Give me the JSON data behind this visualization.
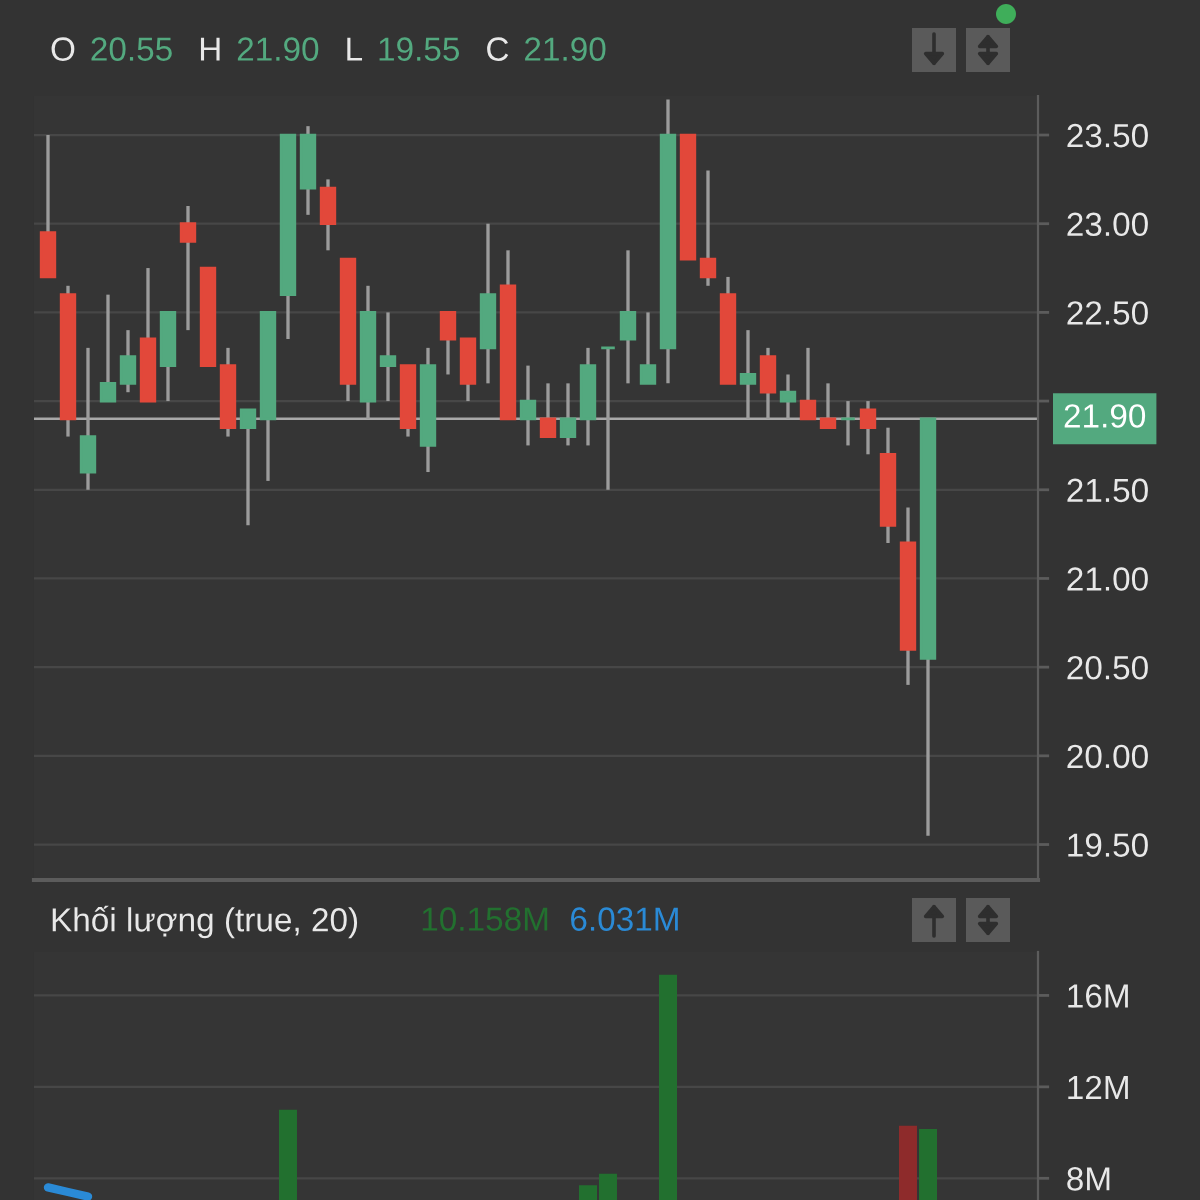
{
  "chart_data": [
    {
      "type": "candlestick",
      "categories": [
        null,
        null,
        null,
        null,
        null,
        null,
        null,
        null,
        null,
        null,
        null,
        null,
        null,
        null,
        null,
        null,
        null,
        null,
        null,
        null,
        null,
        null,
        null,
        null,
        null,
        null,
        null,
        null,
        null,
        null,
        null,
        null,
        null,
        null,
        null,
        null,
        null,
        null,
        null,
        null,
        null,
        null,
        null,
        null,
        null
      ],
      "ohlc": [
        [
          22.95,
          23.5,
          22.7,
          22.7
        ],
        [
          22.6,
          22.65,
          21.8,
          21.9
        ],
        [
          21.6,
          22.3,
          21.5,
          21.8
        ],
        [
          22.0,
          22.6,
          22.0,
          22.1
        ],
        [
          22.1,
          22.4,
          22.05,
          22.25
        ],
        [
          22.35,
          22.75,
          22.0,
          22.0
        ],
        [
          22.2,
          22.5,
          22.0,
          22.5
        ],
        [
          23.0,
          23.1,
          22.4,
          22.9
        ],
        [
          22.75,
          22.75,
          22.2,
          22.2
        ],
        [
          22.2,
          22.3,
          21.8,
          21.85
        ],
        [
          21.85,
          21.95,
          21.3,
          21.95
        ],
        [
          21.9,
          22.5,
          21.55,
          22.5
        ],
        [
          22.6,
          23.5,
          22.35,
          23.5
        ],
        [
          23.2,
          23.55,
          23.05,
          23.5
        ],
        [
          23.2,
          23.25,
          22.85,
          23.0
        ],
        [
          22.8,
          22.8,
          22.0,
          22.1
        ],
        [
          22.0,
          22.65,
          21.9,
          22.5
        ],
        [
          22.2,
          22.5,
          22.0,
          22.25
        ],
        [
          22.2,
          22.2,
          21.8,
          21.85
        ],
        [
          21.75,
          22.3,
          21.6,
          22.2
        ],
        [
          22.5,
          22.5,
          22.15,
          22.35
        ],
        [
          22.35,
          22.35,
          22.0,
          22.1
        ],
        [
          22.3,
          23.0,
          22.1,
          22.6
        ],
        [
          22.65,
          22.85,
          21.9,
          21.9
        ],
        [
          21.9,
          22.2,
          21.75,
          22.0
        ],
        [
          21.9,
          22.1,
          21.8,
          21.8
        ],
        [
          21.8,
          22.1,
          21.75,
          21.9
        ],
        [
          21.9,
          22.3,
          21.75,
          22.2
        ],
        [
          22.3,
          22.3,
          21.5,
          22.3
        ],
        [
          22.35,
          22.85,
          22.1,
          22.5
        ],
        [
          22.1,
          22.5,
          22.1,
          22.2
        ],
        [
          22.3,
          23.7,
          22.1,
          23.5
        ],
        [
          23.5,
          23.5,
          22.8,
          22.8
        ],
        [
          22.8,
          23.3,
          22.65,
          22.7
        ],
        [
          22.6,
          22.7,
          22.1,
          22.1
        ],
        [
          22.1,
          22.4,
          21.9,
          22.15
        ],
        [
          22.25,
          22.3,
          21.9,
          22.05
        ],
        [
          22.0,
          22.15,
          21.9,
          22.05
        ],
        [
          22.0,
          22.3,
          21.9,
          21.9
        ],
        [
          21.9,
          22.1,
          21.85,
          21.85
        ],
        [
          21.9,
          22.0,
          21.75,
          21.9
        ],
        [
          21.95,
          22.0,
          21.7,
          21.85
        ],
        [
          21.7,
          21.85,
          21.2,
          21.3
        ],
        [
          21.2,
          21.4,
          20.4,
          20.6
        ],
        [
          20.55,
          21.9,
          19.55,
          21.9
        ]
      ],
      "colors": [
        "#e2483a",
        "#e2483a",
        "#53a97f",
        "#53a97f",
        "#53a97f",
        "#e2483a",
        "#53a97f",
        "#e2483a",
        "#e2483a",
        "#e2483a",
        "#53a97f",
        "#53a97f",
        "#53a97f",
        "#53a97f",
        "#e2483a",
        "#e2483a",
        "#53a97f",
        "#53a97f",
        "#e2483a",
        "#53a97f",
        "#e2483a",
        "#e2483a",
        "#53a97f",
        "#e2483a",
        "#53a97f",
        "#e2483a",
        "#53a97f",
        "#53a97f",
        "#53a97f",
        "#53a97f",
        "#53a97f",
        "#53a97f",
        "#e2483a",
        "#e2483a",
        "#e2483a",
        "#53a97f",
        "#e2483a",
        "#53a97f",
        "#e2483a",
        "#e2483a",
        "#53a97f",
        "#e2483a",
        "#e2483a",
        "#e2483a",
        "#53a97f"
      ],
      "ylim": [
        19.3,
        23.72
      ],
      "yticks": [
        {
          "value": 19.5,
          "label": "19.50"
        },
        {
          "value": 20,
          "label": "20.00"
        },
        {
          "value": 20.5,
          "label": "20.50"
        },
        {
          "value": 21,
          "label": "21.00"
        },
        {
          "value": 21.5,
          "label": "21.50"
        },
        {
          "value": 22,
          "label": null
        },
        {
          "value": 22.5,
          "label": "22.50"
        },
        {
          "value": 23,
          "label": "23.00"
        },
        {
          "value": 23.5,
          "label": "23.50"
        }
      ],
      "ref_lines": [
        {
          "axis": "y",
          "value": 21.9,
          "label": "21.90",
          "color": "#a8a8a8"
        }
      ],
      "annotations": [
        "O",
        "20.55",
        "H",
        "21.90",
        "L",
        "19.55",
        "C",
        "21.90"
      ],
      "grid": "y",
      "tick_labels": "y"
    },
    {
      "type": "bar",
      "title": "Khối lượng (true, 20)",
      "categories": [
        null,
        null,
        null,
        null,
        null,
        null,
        null,
        null,
        null,
        null,
        null,
        null,
        null,
        null,
        null,
        null,
        null,
        null,
        null,
        null,
        null,
        null,
        null,
        null,
        null,
        null,
        null,
        null,
        null,
        null,
        null,
        null,
        null,
        null,
        null,
        null,
        null,
        null,
        null,
        null,
        null,
        null,
        null,
        null,
        null
      ],
      "series": [
        {
          "type": "bar",
          "values": [
            null,
            null,
            null,
            null,
            null,
            null,
            null,
            null,
            null,
            null,
            null,
            null,
            11.0,
            null,
            null,
            null,
            null,
            null,
            null,
            null,
            null,
            null,
            null,
            null,
            null,
            null,
            null,
            7.7,
            8.2,
            null,
            null,
            16.9,
            null,
            null,
            null,
            null,
            null,
            null,
            null,
            null,
            null,
            null,
            null,
            10.3,
            10.158
          ],
          "colors": [
            "#8e2b2b",
            "#8e2b2b",
            "#22702f",
            "#22702f",
            "#22702f",
            "#8e2b2b",
            "#22702f",
            "#8e2b2b",
            "#8e2b2b",
            "#8e2b2b",
            "#22702f",
            "#22702f",
            "#22702f",
            "#22702f",
            "#8e2b2b",
            "#8e2b2b",
            "#22702f",
            "#22702f",
            "#8e2b2b",
            "#22702f",
            "#8e2b2b",
            "#8e2b2b",
            "#22702f",
            "#8e2b2b",
            "#22702f",
            "#8e2b2b",
            "#22702f",
            "#22702f",
            "#22702f",
            "#22702f",
            "#22702f",
            "#22702f",
            "#8e2b2b",
            "#8e2b2b",
            "#8e2b2b",
            "#22702f",
            "#8e2b2b",
            "#22702f",
            "#8e2b2b",
            "#8e2b2b",
            "#22702f",
            "#8e2b2b",
            "#8e2b2b",
            "#8e2b2b",
            "#22702f"
          ]
        },
        {
          "type": "line",
          "color": "#2a8ad6",
          "values": [
            7.6,
            7.4,
            7.2,
            null,
            null,
            null,
            null,
            null,
            null,
            null,
            null,
            null,
            null,
            null,
            null,
            null,
            null,
            null,
            null,
            null,
            null,
            null,
            null,
            null,
            null,
            null,
            null,
            null,
            null,
            null,
            null,
            null,
            null,
            null,
            null,
            null,
            null,
            null,
            null,
            null,
            null,
            null,
            null,
            null,
            null
          ]
        }
      ],
      "annotations": [
        "10.158M",
        "6.031M"
      ],
      "ylim": [
        7.05,
        17.9
      ],
      "yticks": [
        {
          "value": 8,
          "label": "8M"
        },
        {
          "value": 12,
          "label": "12M"
        },
        {
          "value": 16,
          "label": "16M"
        }
      ],
      "grid": "y",
      "tick_labels": "y"
    }
  ]
}
